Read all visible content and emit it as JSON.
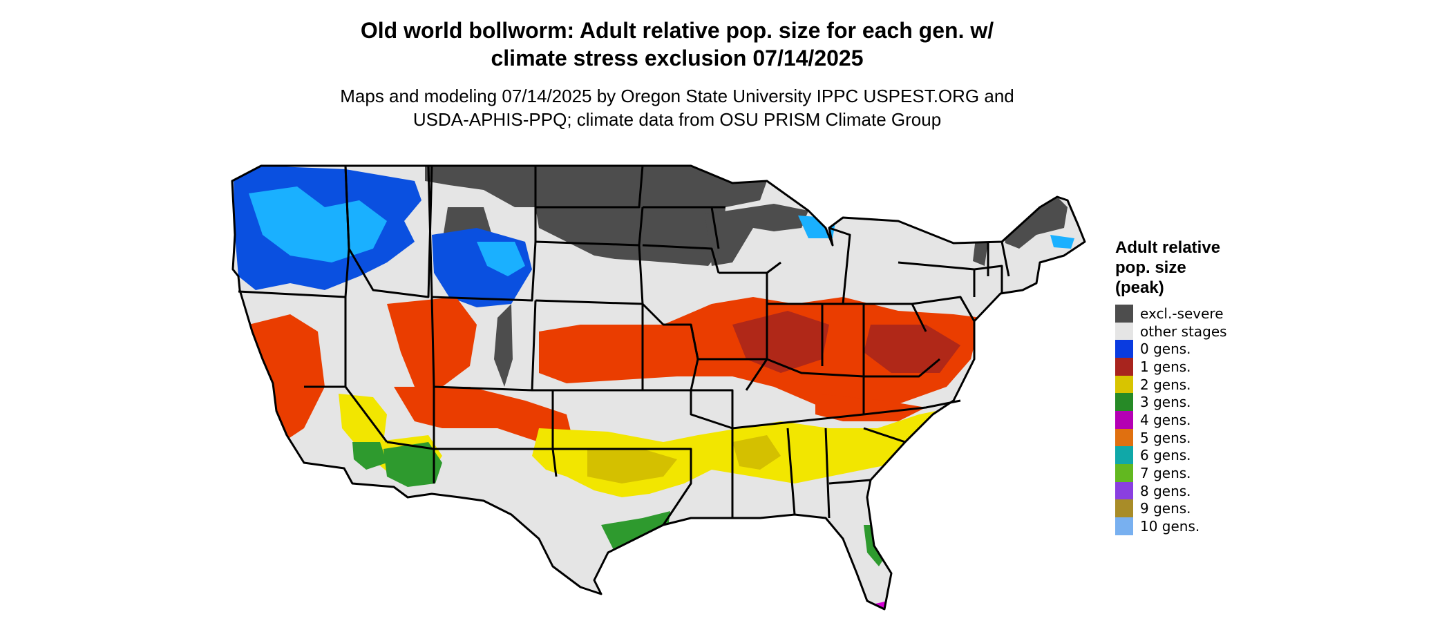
{
  "title": {
    "line1": "Old world bollworm: Adult relative pop. size for each gen. w/",
    "line2": "climate stress exclusion 07/14/2025"
  },
  "subtitle": {
    "line1": "Maps and modeling 07/14/2025 by Oregon State University IPPC USPEST.ORG and",
    "line2": "USDA-APHIS-PPQ; climate data from OSU PRISM Climate Group"
  },
  "legend": {
    "title_lines": [
      "Adult relative",
      "pop. size",
      "(peak)"
    ],
    "items": [
      {
        "label": "excl.-severe",
        "color": "#4d4d4d"
      },
      {
        "label": "other stages",
        "color": "#e5e5e5"
      },
      {
        "label": "0 gens.",
        "color": "#0a3be0"
      },
      {
        "label": "1 gens.",
        "color": "#a8241e"
      },
      {
        "label": "2 gens.",
        "color": "#d8c400"
      },
      {
        "label": "3 gens.",
        "color": "#268a26"
      },
      {
        "label": "4 gens.",
        "color": "#b400b4"
      },
      {
        "label": "5 gens.",
        "color": "#e07010"
      },
      {
        "label": "6 gens.",
        "color": "#10a8a8"
      },
      {
        "label": "7 gens.",
        "color": "#62b820"
      },
      {
        "label": "8 gens.",
        "color": "#8a3fe0"
      },
      {
        "label": "9 gens.",
        "color": "#a88c28"
      },
      {
        "label": "10 gens.",
        "color": "#78b0f0"
      }
    ]
  },
  "map_palette": {
    "land": "#e5e5e5",
    "excluded": "#4d4d4d",
    "zero_gen": "#0a50e0",
    "zero_gen_light": "#1ab0ff",
    "one_gen": "#ea3d00",
    "one_gen_dark": "#b02818",
    "two_gen": "#f2e600",
    "two_gen_dark": "#d4c000",
    "three_gen": "#2e9a2e",
    "four_gen": "#d400d4",
    "borders": "#000000"
  }
}
